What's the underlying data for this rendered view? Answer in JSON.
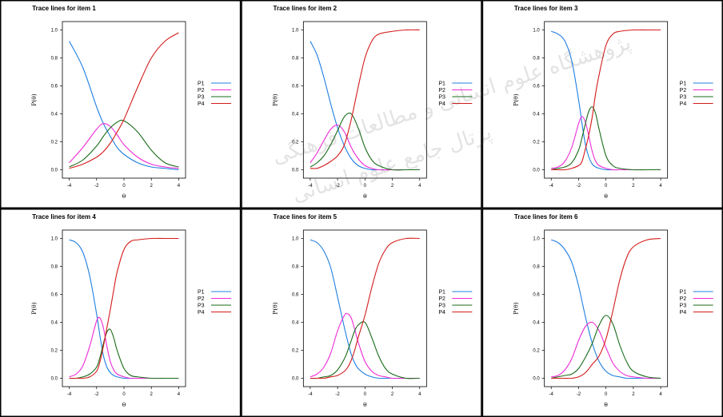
{
  "colors": {
    "P1": "#1f7fe0",
    "P2": "#ee2bd6",
    "P3": "#1a6b1a",
    "P4": "#d41a1a",
    "frame": "#000000",
    "axis": "#000000"
  },
  "watermark": {
    "line1": "پژوهشگاه علوم انسانی و مطالعات فرهنگی",
    "line2": "پرتال جامع علوم انسانی"
  },
  "chart_data": [
    {
      "type": "line",
      "title": "Trace lines for item 1",
      "xlabel": "θ",
      "ylabel": "P(θ)",
      "xlim": [
        -4.5,
        4.5
      ],
      "ylim": [
        -0.06,
        1.06
      ],
      "xticks": [
        -4,
        -2,
        0,
        2,
        4
      ],
      "yticks": [
        0.0,
        0.2,
        0.4,
        0.6,
        0.8,
        1.0
      ],
      "x": [
        -4,
        -3,
        -2,
        -1.5,
        -1,
        -0.5,
        0,
        1,
        2,
        3,
        4
      ],
      "series": [
        {
          "name": "P1",
          "values": [
            0.92,
            0.73,
            0.45,
            0.33,
            0.24,
            0.16,
            0.11,
            0.05,
            0.02,
            0.01,
            0.0
          ]
        },
        {
          "name": "P2",
          "values": [
            0.05,
            0.16,
            0.29,
            0.33,
            0.31,
            0.25,
            0.18,
            0.09,
            0.04,
            0.02,
            0.01
          ]
        },
        {
          "name": "P3",
          "values": [
            0.02,
            0.07,
            0.17,
            0.24,
            0.3,
            0.34,
            0.35,
            0.27,
            0.14,
            0.05,
            0.02
          ]
        },
        {
          "name": "P4",
          "values": [
            0.01,
            0.04,
            0.09,
            0.13,
            0.19,
            0.27,
            0.36,
            0.59,
            0.8,
            0.92,
            0.98
          ]
        }
      ],
      "legend": [
        "P1",
        "P2",
        "P3",
        "P4"
      ]
    },
    {
      "type": "line",
      "title": "Trace lines for item 2",
      "xlabel": "θ",
      "ylabel": "P(θ)",
      "xlim": [
        -4.5,
        4.5
      ],
      "ylim": [
        -0.06,
        1.06
      ],
      "xticks": [
        -4,
        -2,
        0,
        2,
        4
      ],
      "yticks": [
        0.0,
        0.2,
        0.4,
        0.6,
        0.8,
        1.0
      ],
      "x": [
        -4,
        -3.5,
        -3,
        -2.5,
        -2,
        -1.5,
        -1,
        -0.5,
        0,
        0.5,
        1,
        2,
        3,
        4
      ],
      "series": [
        {
          "name": "P1",
          "values": [
            0.92,
            0.82,
            0.66,
            0.47,
            0.3,
            0.17,
            0.08,
            0.03,
            0.01,
            0.0,
            0.0,
            0.0,
            0.0,
            0.0
          ]
        },
        {
          "name": "P2",
          "values": [
            0.05,
            0.12,
            0.21,
            0.29,
            0.32,
            0.27,
            0.16,
            0.08,
            0.03,
            0.01,
            0.0,
            0.0,
            0.0,
            0.0
          ]
        },
        {
          "name": "P3",
          "values": [
            0.02,
            0.05,
            0.1,
            0.18,
            0.28,
            0.38,
            0.4,
            0.3,
            0.16,
            0.07,
            0.03,
            0.0,
            0.0,
            0.0
          ]
        },
        {
          "name": "P4",
          "values": [
            0.01,
            0.01,
            0.03,
            0.06,
            0.1,
            0.18,
            0.36,
            0.59,
            0.8,
            0.92,
            0.97,
            0.99,
            1.0,
            1.0
          ]
        }
      ],
      "legend": [
        "P1",
        "P2",
        "P3",
        "P4"
      ]
    },
    {
      "type": "line",
      "title": "Trace lines for item 3",
      "xlabel": "θ",
      "ylabel": "P(θ)",
      "xlim": [
        -4.5,
        4.5
      ],
      "ylim": [
        -0.06,
        1.06
      ],
      "xticks": [
        -4,
        -2,
        0,
        2,
        4
      ],
      "yticks": [
        0.0,
        0.2,
        0.4,
        0.6,
        0.8,
        1.0
      ],
      "x": [
        -4,
        -3.5,
        -3,
        -2.5,
        -2,
        -1.75,
        -1.5,
        -1.25,
        -1,
        -0.75,
        -0.5,
        0,
        0.5,
        1,
        2,
        3,
        4
      ],
      "series": [
        {
          "name": "P1",
          "values": [
            0.99,
            0.97,
            0.92,
            0.78,
            0.5,
            0.33,
            0.18,
            0.09,
            0.04,
            0.02,
            0.01,
            0.0,
            0.0,
            0.0,
            0.0,
            0.0,
            0.0
          ]
        },
        {
          "name": "P2",
          "values": [
            0.01,
            0.02,
            0.06,
            0.16,
            0.33,
            0.38,
            0.34,
            0.24,
            0.13,
            0.06,
            0.03,
            0.01,
            0.0,
            0.0,
            0.0,
            0.0,
            0.0
          ]
        },
        {
          "name": "P3",
          "values": [
            0.0,
            0.01,
            0.02,
            0.05,
            0.14,
            0.23,
            0.33,
            0.42,
            0.45,
            0.4,
            0.29,
            0.1,
            0.03,
            0.01,
            0.0,
            0.0,
            0.0
          ]
        },
        {
          "name": "P4",
          "values": [
            0.0,
            0.0,
            0.0,
            0.01,
            0.03,
            0.06,
            0.15,
            0.25,
            0.38,
            0.55,
            0.68,
            0.89,
            0.97,
            0.99,
            1.0,
            1.0,
            1.0
          ]
        }
      ],
      "legend": [
        "P1",
        "P2",
        "P3",
        "P4"
      ]
    },
    {
      "type": "line",
      "title": "Trace lines for item 4",
      "xlabel": "θ",
      "ylabel": "P(θ)",
      "xlim": [
        -4.5,
        4.5
      ],
      "ylim": [
        -0.06,
        1.06
      ],
      "xticks": [
        -4,
        -2,
        0,
        2,
        4
      ],
      "yticks": [
        0.0,
        0.2,
        0.4,
        0.6,
        0.8,
        1.0
      ],
      "x": [
        -4,
        -3.5,
        -3,
        -2.5,
        -2,
        -1.75,
        -1.5,
        -1.25,
        -1,
        -0.75,
        -0.5,
        0,
        0.5,
        1,
        2,
        3,
        4
      ],
      "series": [
        {
          "name": "P1",
          "values": [
            0.99,
            0.97,
            0.9,
            0.73,
            0.46,
            0.3,
            0.16,
            0.08,
            0.04,
            0.02,
            0.01,
            0.0,
            0.0,
            0.0,
            0.0,
            0.0,
            0.0
          ]
        },
        {
          "name": "P2",
          "values": [
            0.01,
            0.03,
            0.09,
            0.23,
            0.41,
            0.43,
            0.36,
            0.23,
            0.12,
            0.06,
            0.03,
            0.01,
            0.0,
            0.0,
            0.0,
            0.0,
            0.0
          ]
        },
        {
          "name": "P3",
          "values": [
            0.0,
            0.0,
            0.01,
            0.03,
            0.08,
            0.15,
            0.25,
            0.33,
            0.35,
            0.29,
            0.2,
            0.07,
            0.02,
            0.01,
            0.0,
            0.0,
            0.0
          ]
        },
        {
          "name": "P4",
          "values": [
            0.0,
            0.0,
            0.0,
            0.01,
            0.05,
            0.12,
            0.23,
            0.36,
            0.49,
            0.63,
            0.76,
            0.92,
            0.98,
            0.99,
            1.0,
            1.0,
            1.0
          ]
        }
      ],
      "legend": [
        "P1",
        "P2",
        "P3",
        "P4"
      ]
    },
    {
      "type": "line",
      "title": "Trace lines for item 5",
      "xlabel": "θ",
      "ylabel": "P(θ)",
      "xlim": [
        -4.5,
        4.5
      ],
      "ylim": [
        -0.06,
        1.06
      ],
      "xticks": [
        -4,
        -2,
        0,
        2,
        4
      ],
      "yticks": [
        0.0,
        0.2,
        0.4,
        0.6,
        0.8,
        1.0
      ],
      "x": [
        -4,
        -3.5,
        -3,
        -2.5,
        -2,
        -1.5,
        -1.25,
        -1,
        -0.75,
        -0.5,
        0,
        0.5,
        1,
        1.5,
        2,
        3,
        4
      ],
      "series": [
        {
          "name": "P1",
          "values": [
            0.99,
            0.97,
            0.91,
            0.79,
            0.58,
            0.36,
            0.26,
            0.17,
            0.11,
            0.07,
            0.03,
            0.01,
            0.0,
            0.0,
            0.0,
            0.0,
            0.0
          ]
        },
        {
          "name": "P2",
          "values": [
            0.01,
            0.03,
            0.08,
            0.18,
            0.34,
            0.45,
            0.46,
            0.43,
            0.35,
            0.26,
            0.12,
            0.05,
            0.02,
            0.01,
            0.0,
            0.0,
            0.0
          ]
        },
        {
          "name": "P3",
          "values": [
            0.0,
            0.0,
            0.01,
            0.02,
            0.06,
            0.14,
            0.2,
            0.27,
            0.34,
            0.38,
            0.4,
            0.29,
            0.16,
            0.07,
            0.03,
            0.0,
            0.0
          ]
        },
        {
          "name": "P4",
          "values": [
            0.0,
            0.0,
            0.0,
            0.01,
            0.02,
            0.05,
            0.08,
            0.13,
            0.2,
            0.29,
            0.45,
            0.65,
            0.82,
            0.92,
            0.97,
            1.0,
            1.0
          ]
        }
      ],
      "legend": [
        "P1",
        "P2",
        "P3",
        "P4"
      ]
    },
    {
      "type": "line",
      "title": "Trace lines for item 6",
      "xlabel": "θ",
      "ylabel": "P(θ)",
      "xlim": [
        -4.5,
        4.5
      ],
      "ylim": [
        -0.06,
        1.06
      ],
      "xticks": [
        -4,
        -2,
        0,
        2,
        4
      ],
      "yticks": [
        0.0,
        0.2,
        0.4,
        0.6,
        0.8,
        1.0
      ],
      "x": [
        -4,
        -3.5,
        -3,
        -2.5,
        -2,
        -1.5,
        -1,
        -0.5,
        0,
        0.5,
        1,
        1.5,
        2,
        3,
        4
      ],
      "series": [
        {
          "name": "P1",
          "values": [
            0.99,
            0.97,
            0.92,
            0.83,
            0.66,
            0.44,
            0.25,
            0.12,
            0.05,
            0.02,
            0.01,
            0.0,
            0.0,
            0.0,
            0.0
          ]
        },
        {
          "name": "P2",
          "values": [
            0.01,
            0.02,
            0.06,
            0.14,
            0.27,
            0.37,
            0.4,
            0.34,
            0.22,
            0.11,
            0.05,
            0.02,
            0.01,
            0.0,
            0.0
          ]
        },
        {
          "name": "P3",
          "values": [
            0.0,
            0.01,
            0.02,
            0.03,
            0.07,
            0.15,
            0.25,
            0.38,
            0.45,
            0.39,
            0.24,
            0.12,
            0.05,
            0.01,
            0.0
          ]
        },
        {
          "name": "P4",
          "values": [
            0.0,
            0.0,
            0.0,
            0.0,
            0.01,
            0.04,
            0.1,
            0.16,
            0.28,
            0.48,
            0.7,
            0.86,
            0.94,
            0.99,
            1.0
          ]
        }
      ],
      "legend": [
        "P1",
        "P2",
        "P3",
        "P4"
      ]
    }
  ]
}
